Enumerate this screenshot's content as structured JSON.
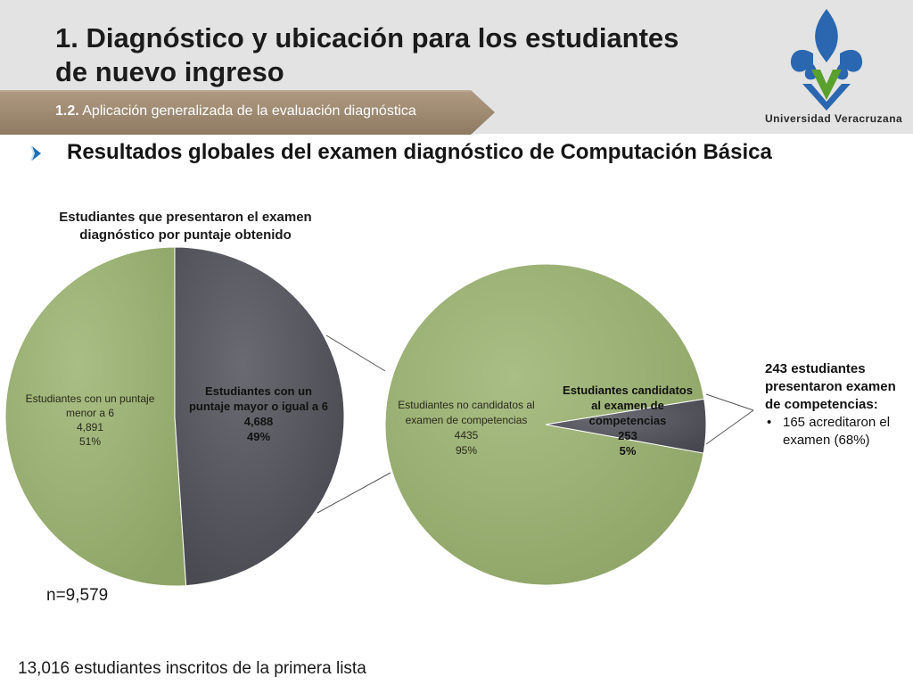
{
  "header": {
    "title_line1": "1. Diagnóstico y ubicación para los estudiantes",
    "title_line2": "de nuevo ingreso",
    "ribbon_number": "1.2.",
    "ribbon_text": "Aplicación generalizada de la evaluación diagnóstica",
    "logo_caption": "Universidad Veracruzana",
    "colors": {
      "ribbon": "#9e8a72",
      "logo_blue": "#2a67b0",
      "logo_green": "#5aa02c"
    }
  },
  "subtitle": "Resultados globales del examen diagnóstico de Computación Básica",
  "chart_data": [
    {
      "type": "pie",
      "title_line1": "Estudiantes que presentaron el examen",
      "title_line2": "diagnóstico por puntaje obtenido",
      "total_label": "n=9,579",
      "slices": [
        {
          "label_line1": "Estudiantes con un puntaje",
          "label_line2": "menor a 6",
          "value": 4891,
          "value_label": "4,891",
          "percent": 51,
          "percent_label": "51%",
          "color": "#9cb274"
        },
        {
          "label_line1": "Estudiantes con un",
          "label_line2": "puntaje mayor o igual a 6",
          "value": 4688,
          "value_label": "4,688",
          "percent": 49,
          "percent_label": "49%",
          "color": "#5e5f66"
        }
      ]
    },
    {
      "type": "pie",
      "slices": [
        {
          "label_line1": "Estudiantes no candidatos al",
          "label_line2": "examen de competencias",
          "value": 4435,
          "value_label": "4435",
          "percent": 95,
          "percent_label": "95%",
          "color": "#9cb274"
        },
        {
          "label_line1": "Estudiantes candidatos",
          "label_line2": "al examen de",
          "label_line3": "competencias",
          "value": 253,
          "value_label": "253",
          "percent": 5,
          "percent_label": "5%",
          "color": "#5e5f66"
        }
      ]
    }
  ],
  "note": {
    "heading": "243 estudiantes presentaron examen de competencias:",
    "items": [
      "165 acreditaron el examen (68%)"
    ]
  },
  "footer": "13,016 estudiantes inscritos de la primera lista"
}
